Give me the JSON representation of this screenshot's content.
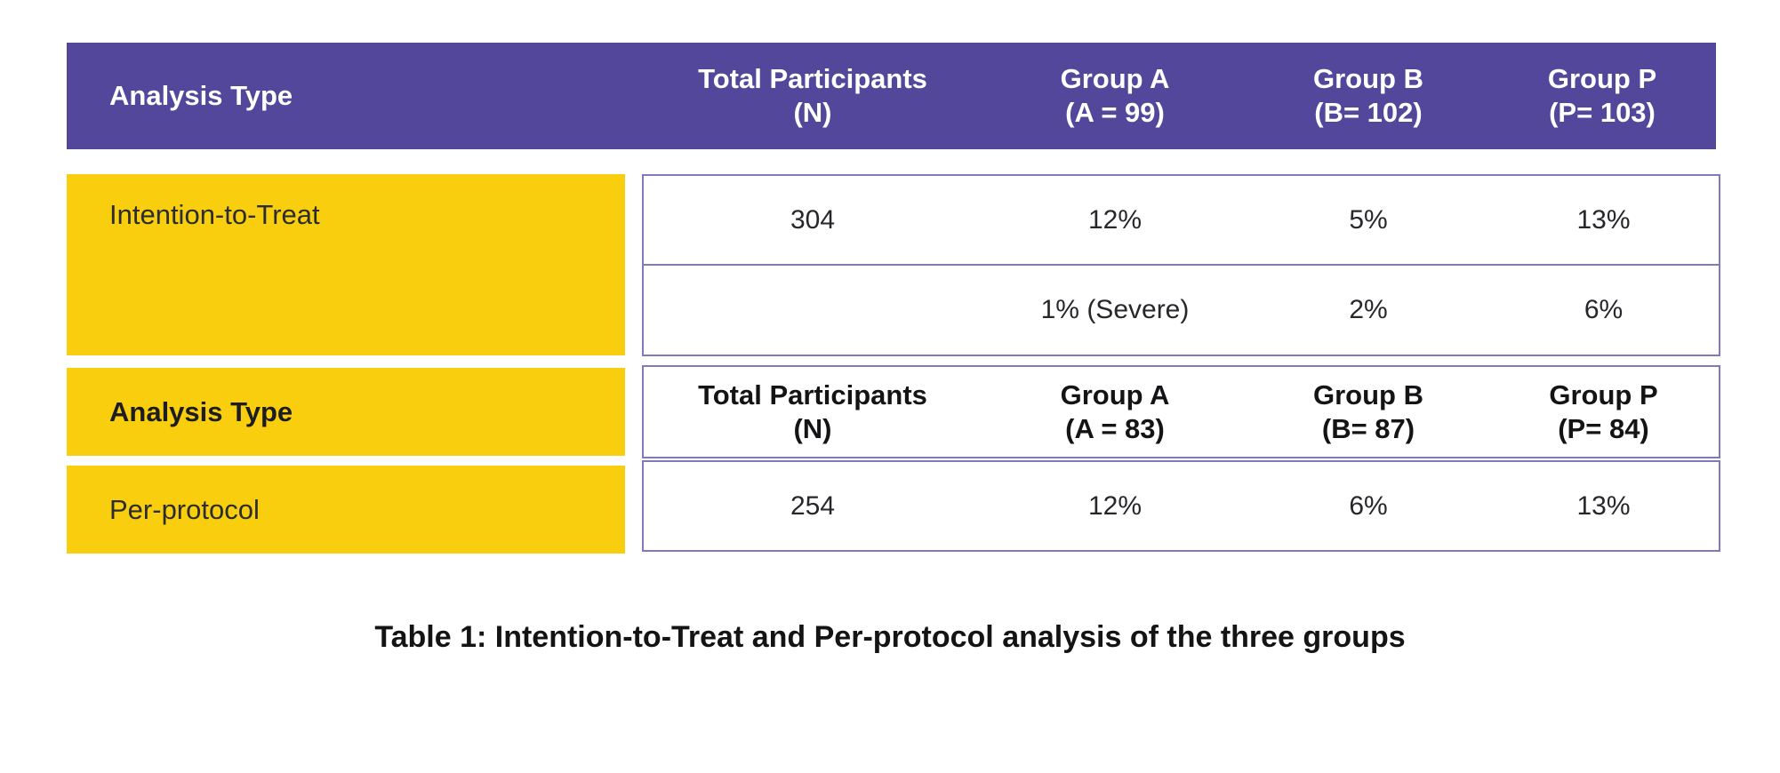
{
  "colors": {
    "header_bg": "#53479B",
    "header_text": "#FFFFFF",
    "row_label_bg": "#F8CE0E",
    "box_border": "#8079BA",
    "body_text": "#26272B"
  },
  "main_header": {
    "analysis_type": "Analysis Type",
    "cols": [
      {
        "l1": "Total Participants",
        "l2": "(N)"
      },
      {
        "l1": "Group A",
        "l2": "(A = 99)"
      },
      {
        "l1": "Group B",
        "l2": "(B= 102)"
      },
      {
        "l1": "Group P",
        "l2": "(P= 103)"
      }
    ]
  },
  "itt": {
    "label": "Intention-to-Treat",
    "row1": [
      "304",
      "12%",
      "5%",
      "13%"
    ],
    "row2": [
      "",
      "1% (Severe)",
      "2%",
      "6%"
    ]
  },
  "pp_header": {
    "label": "Analysis Type",
    "cols": [
      {
        "l1": "Total Participants",
        "l2": "(N)"
      },
      {
        "l1": "Group A",
        "l2": "(A = 83)"
      },
      {
        "l1": "Group B",
        "l2": "(B= 87)"
      },
      {
        "l1": "Group P",
        "l2": "(P= 84)"
      }
    ]
  },
  "pp": {
    "label": "Per-protocol",
    "row": [
      "254",
      "12%",
      "6%",
      "13%"
    ]
  },
  "caption": "Table 1: Intention-to-Treat and Per-protocol analysis of the three groups",
  "chart_data": {
    "type": "table",
    "title": "Table 1: Intention-to-Treat and Per-protocol analysis of the three groups",
    "sections": [
      {
        "header": [
          "Analysis Type",
          "Total Participants (N)",
          "Group A (A = 99)",
          "Group B (B= 102)",
          "Group P (P= 103)"
        ],
        "rows": [
          [
            "Intention-to-Treat",
            "304",
            "12%",
            "5%",
            "13%"
          ],
          [
            "",
            "",
            "1% (Severe)",
            "2%",
            "6%"
          ]
        ]
      },
      {
        "header": [
          "Analysis Type",
          "Total Participants (N)",
          "Group A (A = 83)",
          "Group B (B= 87)",
          "Group P (P= 84)"
        ],
        "rows": [
          [
            "Per-protocol",
            "254",
            "12%",
            "6%",
            "13%"
          ]
        ]
      }
    ]
  }
}
